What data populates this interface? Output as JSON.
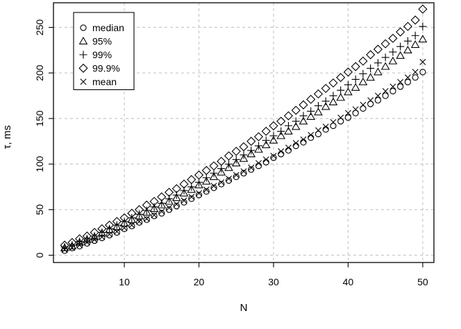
{
  "chart_data": {
    "type": "scatter",
    "title": "",
    "xlabel": "N",
    "ylabel": "τ, ms",
    "xlim": [
      0.5,
      51.5
    ],
    "ylim": [
      -8,
      277
    ],
    "x_ticks": [
      10,
      20,
      30,
      40,
      50
    ],
    "y_ticks": [
      0,
      50,
      100,
      150,
      200,
      250
    ],
    "grid": true,
    "legend_position": "top-left",
    "x": [
      2,
      3,
      4,
      5,
      6,
      7,
      8,
      9,
      10,
      11,
      12,
      13,
      14,
      15,
      16,
      17,
      18,
      19,
      20,
      21,
      22,
      23,
      24,
      25,
      26,
      27,
      28,
      29,
      30,
      31,
      32,
      33,
      34,
      35,
      36,
      37,
      38,
      39,
      40,
      41,
      42,
      43,
      44,
      45,
      46,
      47,
      48,
      49,
      50
    ],
    "series": [
      {
        "name": "median",
        "marker": "circle",
        "values": [
          5,
          8,
          10,
          13,
          16,
          19,
          22,
          25,
          29,
          32,
          36,
          39,
          43,
          46,
          50,
          54,
          58,
          62,
          66,
          70,
          74,
          78,
          82,
          86,
          90,
          94,
          98,
          102,
          107,
          111,
          115,
          120,
          124,
          129,
          133,
          138,
          142,
          147,
          151,
          156,
          161,
          166,
          170,
          175,
          180,
          185,
          190,
          195,
          201
        ]
      },
      {
        "name": "95%",
        "marker": "triangle",
        "values": [
          8,
          10,
          14,
          17,
          20,
          24,
          28,
          31,
          35,
          39,
          43,
          47,
          51,
          55,
          59,
          63,
          68,
          72,
          77,
          81,
          86,
          91,
          96,
          101,
          106,
          111,
          116,
          121,
          126,
          131,
          136,
          141,
          147,
          152,
          157,
          163,
          168,
          173,
          179,
          184,
          190,
          195,
          201,
          207,
          213,
          219,
          225,
          231,
          237
        ]
      },
      {
        "name": "99%",
        "marker": "plus",
        "values": [
          9,
          11,
          15,
          18,
          21,
          25,
          29,
          33,
          37,
          41,
          45,
          49,
          53,
          57,
          62,
          66,
          71,
          75,
          80,
          85,
          90,
          95,
          100,
          105,
          110,
          115,
          120,
          126,
          131,
          136,
          142,
          147,
          153,
          158,
          164,
          169,
          175,
          181,
          187,
          193,
          199,
          205,
          211,
          217,
          223,
          229,
          235,
          241,
          251
        ]
      },
      {
        "name": "99.9%",
        "marker": "diamond",
        "values": [
          11,
          14,
          18,
          21,
          25,
          29,
          33,
          37,
          41,
          46,
          50,
          55,
          59,
          64,
          69,
          73,
          78,
          83,
          88,
          93,
          98,
          103,
          109,
          114,
          119,
          125,
          130,
          136,
          142,
          147,
          153,
          159,
          165,
          171,
          177,
          183,
          189,
          195,
          201,
          207,
          213,
          220,
          226,
          232,
          238,
          245,
          251,
          258,
          270
        ]
      },
      {
        "name": "mean",
        "marker": "cross",
        "values": [
          6,
          8,
          11,
          14,
          17,
          20,
          23,
          26,
          30,
          33,
          37,
          40,
          44,
          48,
          52,
          56,
          60,
          64,
          68,
          72,
          76,
          80,
          84,
          88,
          92,
          96,
          101,
          105,
          109,
          114,
          118,
          123,
          127,
          132,
          137,
          141,
          146,
          151,
          156,
          160,
          165,
          170,
          175,
          180,
          185,
          190,
          195,
          201,
          212
        ]
      }
    ]
  }
}
